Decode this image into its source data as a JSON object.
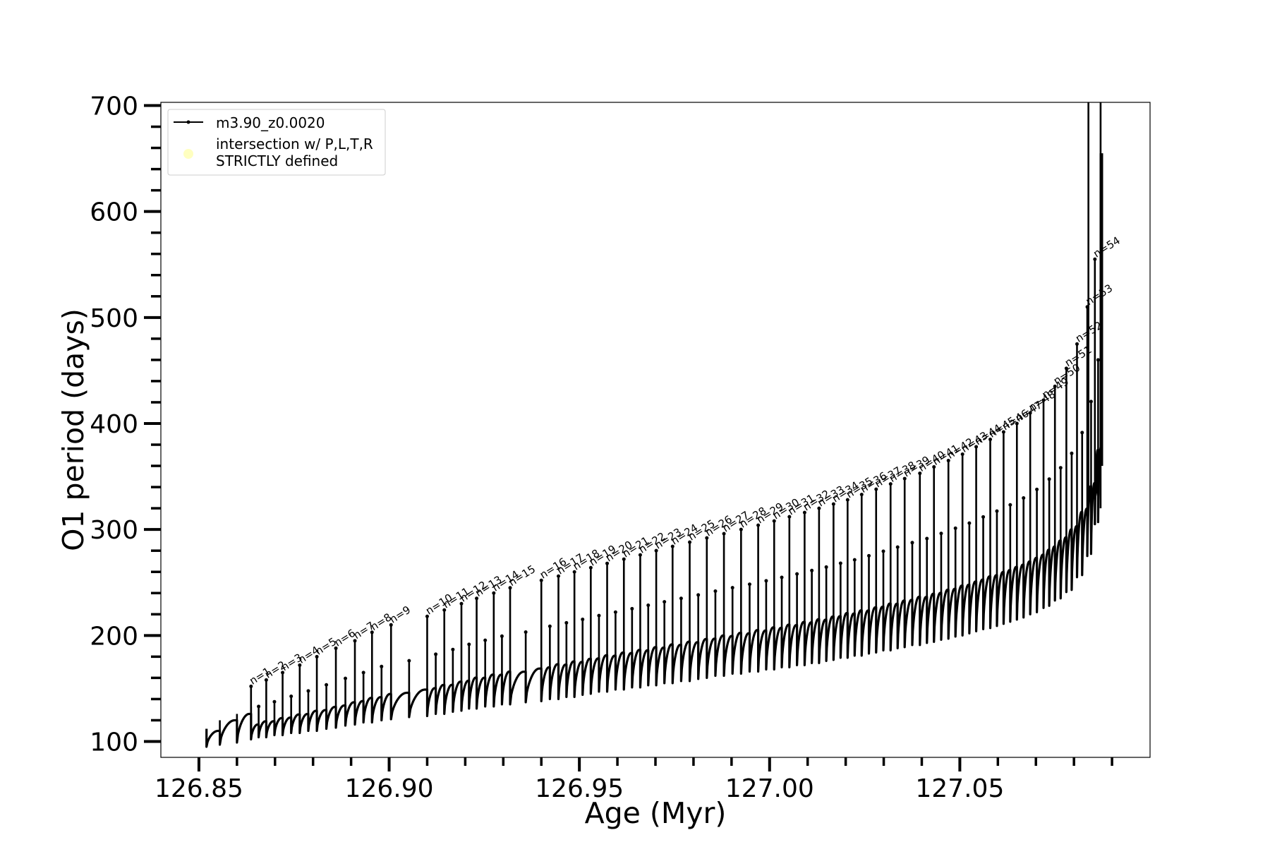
{
  "chart_data": {
    "type": "line",
    "title": "",
    "xlabel": "Age (Myr)",
    "ylabel": "O1 period (days)",
    "xlim": [
      126.84,
      127.1
    ],
    "ylim": [
      85,
      703
    ],
    "x_ticks": [
      {
        "value": 126.85,
        "label": "126.85"
      },
      {
        "value": 126.9,
        "label": "126.90"
      },
      {
        "value": 126.95,
        "label": "126.95"
      },
      {
        "value": 127.0,
        "label": "127.00"
      },
      {
        "value": 127.05,
        "label": "127.05"
      }
    ],
    "x_minor_step": 0.01,
    "x_minor_end": 127.09,
    "y_ticks": [
      {
        "value": 100,
        "label": "100"
      },
      {
        "value": 200,
        "label": "200"
      },
      {
        "value": 300,
        "label": "300"
      },
      {
        "value": 400,
        "label": "400"
      },
      {
        "value": 500,
        "label": "500"
      },
      {
        "value": 600,
        "label": "600"
      },
      {
        "value": 700,
        "label": "700"
      }
    ],
    "y_minor_step": 20,
    "grid": false,
    "legend": {
      "placement": "top-left",
      "entries": [
        {
          "label": "m3.90_z0.0020",
          "marker": "line-dot",
          "color": "#000000"
        },
        {
          "label_lines": [
            "intersection w/ P,L,T,R",
            "STRICTLY defined"
          ],
          "marker": "circle",
          "color": "#ffffc0"
        }
      ]
    },
    "series": [
      {
        "name": "m3.90_z0.0020",
        "color": "#000000",
        "loops": [
          {
            "n": 1,
            "age": 126.8637,
            "trough": 102,
            "top": 152
          },
          {
            "n": 2,
            "age": 126.8677,
            "trough": 104,
            "top": 158
          },
          {
            "n": 3,
            "age": 126.872,
            "trough": 106,
            "top": 165
          },
          {
            "n": 4,
            "age": 126.8765,
            "trough": 108,
            "top": 172
          },
          {
            "n": 5,
            "age": 126.881,
            "trough": 110,
            "top": 180
          },
          {
            "n": 6,
            "age": 126.886,
            "trough": 113,
            "top": 188
          },
          {
            "n": 7,
            "age": 126.891,
            "trough": 116,
            "top": 195
          },
          {
            "n": 8,
            "age": 126.8955,
            "trough": 118,
            "top": 203
          },
          {
            "n": 9,
            "age": 126.9005,
            "trough": 121,
            "top": 210
          },
          {
            "n": 10,
            "age": 126.91,
            "trough": 124,
            "top": 218
          },
          {
            "n": 11,
            "age": 126.9145,
            "trough": 126,
            "top": 224
          },
          {
            "n": 12,
            "age": 126.919,
            "trough": 129,
            "top": 230
          },
          {
            "n": 13,
            "age": 126.923,
            "trough": 131,
            "top": 235
          },
          {
            "n": 14,
            "age": 126.9275,
            "trough": 133,
            "top": 240
          },
          {
            "n": 15,
            "age": 126.9318,
            "trough": 135,
            "top": 245
          },
          {
            "n": 16,
            "age": 126.94,
            "trough": 138,
            "top": 252
          },
          {
            "n": 17,
            "age": 126.9445,
            "trough": 140,
            "top": 256
          },
          {
            "n": 18,
            "age": 126.9487,
            "trough": 142,
            "top": 260
          },
          {
            "n": 19,
            "age": 126.953,
            "trough": 145,
            "top": 264
          },
          {
            "n": 20,
            "age": 126.9573,
            "trough": 147,
            "top": 268
          },
          {
            "n": 21,
            "age": 126.9617,
            "trough": 149,
            "top": 272
          },
          {
            "n": 22,
            "age": 126.966,
            "trough": 151,
            "top": 276
          },
          {
            "n": 23,
            "age": 126.9702,
            "trough": 153,
            "top": 280
          },
          {
            "n": 24,
            "age": 126.9745,
            "trough": 155,
            "top": 284
          },
          {
            "n": 25,
            "age": 126.979,
            "trough": 157,
            "top": 288
          },
          {
            "n": 26,
            "age": 126.9835,
            "trough": 160,
            "top": 292
          },
          {
            "n": 27,
            "age": 126.988,
            "trough": 162,
            "top": 296
          },
          {
            "n": 28,
            "age": 126.9925,
            "trough": 164,
            "top": 300
          },
          {
            "n": 29,
            "age": 126.997,
            "trough": 166,
            "top": 304
          },
          {
            "n": 30,
            "age": 127.0012,
            "trough": 168,
            "top": 308
          },
          {
            "n": 31,
            "age": 127.0052,
            "trough": 170,
            "top": 312
          },
          {
            "n": 32,
            "age": 127.0092,
            "trough": 172,
            "top": 316
          },
          {
            "n": 33,
            "age": 127.013,
            "trough": 174,
            "top": 320
          },
          {
            "n": 34,
            "age": 127.0168,
            "trough": 177,
            "top": 324
          },
          {
            "n": 35,
            "age": 127.0205,
            "trough": 179,
            "top": 328
          },
          {
            "n": 36,
            "age": 127.0242,
            "trough": 181,
            "top": 333
          },
          {
            "n": 37,
            "age": 127.028,
            "trough": 184,
            "top": 338
          },
          {
            "n": 38,
            "age": 127.0318,
            "trough": 186,
            "top": 343
          },
          {
            "n": 39,
            "age": 127.0355,
            "trough": 189,
            "top": 348
          },
          {
            "n": 40,
            "age": 127.0395,
            "trough": 191,
            "top": 353
          },
          {
            "n": 41,
            "age": 127.0432,
            "trough": 194,
            "top": 359
          },
          {
            "n": 42,
            "age": 127.047,
            "trough": 197,
            "top": 365
          },
          {
            "n": 43,
            "age": 127.0507,
            "trough": 200,
            "top": 371
          },
          {
            "n": 44,
            "age": 127.0543,
            "trough": 204,
            "top": 378
          },
          {
            "n": 45,
            "age": 127.058,
            "trough": 207,
            "top": 385
          },
          {
            "n": 46,
            "age": 127.0615,
            "trough": 211,
            "top": 392
          },
          {
            "n": 47,
            "age": 127.065,
            "trough": 215,
            "top": 400
          },
          {
            "n": 48,
            "age": 127.0685,
            "trough": 220,
            "top": 410
          },
          {
            "n": 49,
            "age": 127.072,
            "trough": 226,
            "top": 422
          },
          {
            "n": 50,
            "age": 127.075,
            "trough": 233,
            "top": 435
          },
          {
            "n": 51,
            "age": 127.078,
            "trough": 241,
            "top": 452
          },
          {
            "n": 52,
            "age": 127.0808,
            "trough": 255,
            "top": 475
          },
          {
            "n": 53,
            "age": 127.0835,
            "trough": 275,
            "top": 510
          },
          {
            "n": 54,
            "age": 127.0855,
            "trough": 305,
            "top": 555
          }
        ]
      }
    ]
  }
}
